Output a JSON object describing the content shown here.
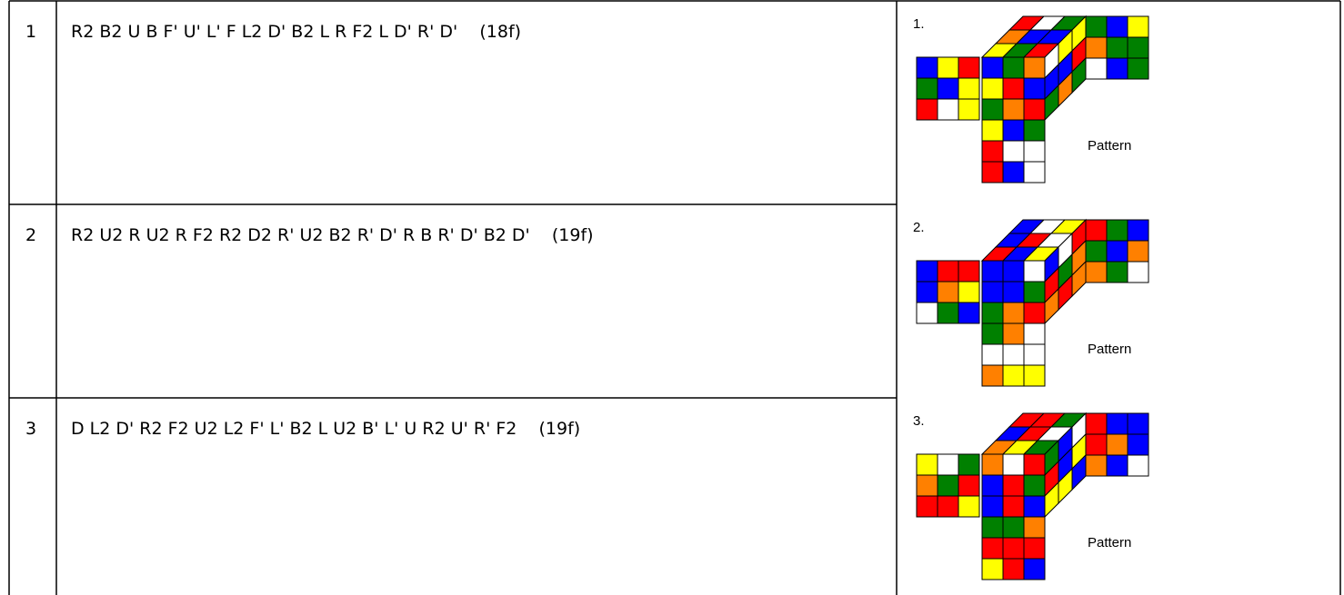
{
  "rows": [
    {
      "number": "1",
      "moves": "R2 B2 U B F' U' L' F L2 D' B2 L R F2 L D' R' D'    (18f)",
      "image_label": "1.",
      "image_caption": "Pattern"
    },
    {
      "number": "2",
      "moves": "R2 U2 R U2 R F2 R2 D2 R' U2 B2 R' D' R B R' D' B2 D'    (19f)",
      "image_label": "2.",
      "image_caption": "Pattern"
    },
    {
      "number": "3",
      "moves": "D L2 D' R2 F2 U2 L2 F' L' B2 L U2 B' L' U R2 U' R' F2    (19f)",
      "image_label": "3.",
      "image_caption": "Pattern"
    }
  ]
}
